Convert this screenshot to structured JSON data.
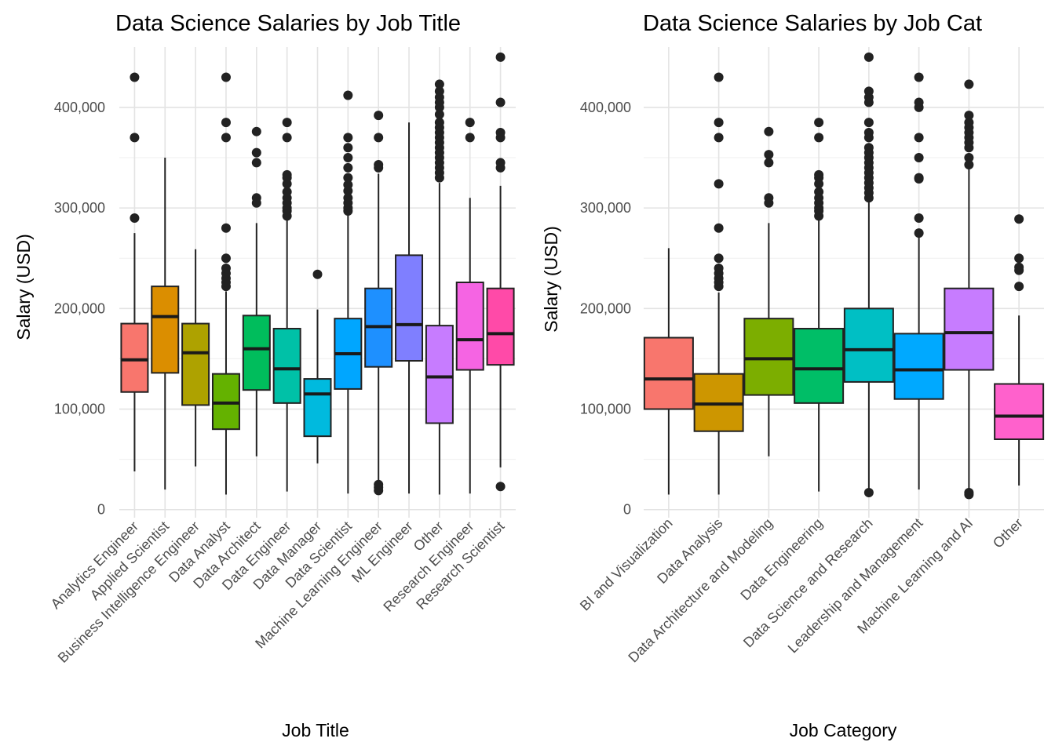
{
  "chart_data": [
    {
      "type": "box",
      "title": "Data Science Salaries by Job Title",
      "xlabel": "Job Title",
      "ylabel": "Salary (USD)",
      "ylim": [
        -8000,
        460000
      ],
      "yticks": [
        0,
        100000,
        200000,
        300000,
        400000
      ],
      "ytick_labels": [
        "0",
        "100,000",
        "200,000",
        "300,000",
        "400,000"
      ],
      "grid": true,
      "legend": "none",
      "boxes": [
        {
          "category": "Analytics Engineer",
          "color": "#F8766D",
          "whisker_low": 38000,
          "q1": 117000,
          "median": 149000,
          "q3": 185000,
          "whisker_high": 275000,
          "outliers": [
            290000,
            370000,
            430000
          ]
        },
        {
          "category": "Applied Scientist",
          "color": "#DB8E00",
          "whisker_low": 20000,
          "q1": 136000,
          "median": 192000,
          "q3": 222000,
          "whisker_high": 350000,
          "outliers": []
        },
        {
          "category": "Business Intelligence Engineer",
          "color": "#AEA200",
          "whisker_low": 43000,
          "q1": 104000,
          "median": 156000,
          "q3": 185000,
          "whisker_high": 259000,
          "outliers": []
        },
        {
          "category": "Data Analyst",
          "color": "#64B200",
          "whisker_low": 15000,
          "q1": 80000,
          "median": 106000,
          "q3": 135000,
          "whisker_high": 217000,
          "outliers": [
            222000,
            226000,
            230000,
            235000,
            240000,
            250000,
            280000,
            370000,
            385000,
            430000
          ]
        },
        {
          "category": "Data Architect",
          "color": "#00BD5C",
          "whisker_low": 53000,
          "q1": 119000,
          "median": 160000,
          "q3": 193000,
          "whisker_high": 285000,
          "outliers": [
            305000,
            310000,
            345000,
            355000,
            376000
          ]
        },
        {
          "category": "Data Engineer",
          "color": "#00C1A7",
          "whisker_low": 18000,
          "q1": 106000,
          "median": 140000,
          "q3": 180000,
          "whisker_high": 288000,
          "outliers": [
            292000,
            297000,
            300000,
            305000,
            310000,
            316000,
            324000,
            330000,
            333000,
            370000,
            385000
          ]
        },
        {
          "category": "Data Manager",
          "color": "#00BADE",
          "whisker_low": 46000,
          "q1": 73000,
          "median": 115000,
          "q3": 130000,
          "whisker_high": 199000,
          "outliers": [
            234000
          ]
        },
        {
          "category": "Data Scientist",
          "color": "#00A6FF",
          "whisker_low": 16000,
          "q1": 120000,
          "median": 155000,
          "q3": 190000,
          "whisker_high": 293000,
          "outliers": [
            297000,
            300000,
            305000,
            310000,
            317000,
            323000,
            330000,
            340000,
            350000,
            360000,
            370000,
            412000
          ]
        },
        {
          "category": "Machine Learning Engineer",
          "color": "#1E90FF",
          "whisker_low": 26000,
          "q1": 142000,
          "median": 182000,
          "q3": 220000,
          "whisker_high": 334000,
          "outliers": [
            19000,
            22000,
            25000,
            340000,
            343000,
            370000,
            392000
          ]
        },
        {
          "category": "ML Engineer",
          "color": "#7F7FFF",
          "whisker_low": 16000,
          "q1": 148000,
          "median": 184000,
          "q3": 253000,
          "whisker_high": 385000,
          "outliers": []
        },
        {
          "category": "Other",
          "color": "#C77CFF",
          "whisker_low": 15000,
          "q1": 86000,
          "median": 132000,
          "q3": 183000,
          "whisker_high": 325000,
          "outliers": [
            330000,
            335000,
            340000,
            345000,
            350000,
            355000,
            360000,
            365000,
            370000,
            375000,
            380000,
            385000,
            393000,
            400000,
            405000,
            410000,
            416000,
            423000
          ]
        },
        {
          "category": "Research Engineer",
          "color": "#F564E3",
          "whisker_low": 16000,
          "q1": 139000,
          "median": 169000,
          "q3": 226000,
          "whisker_high": 310000,
          "outliers": [
            370000,
            385000
          ]
        },
        {
          "category": "Research Scientist",
          "color": "#FF4AA8",
          "whisker_low": 42000,
          "q1": 144000,
          "median": 175000,
          "q3": 220000,
          "whisker_high": 322000,
          "outliers": [
            23000,
            340000,
            345000,
            370000,
            375000,
            405000,
            450000
          ]
        }
      ]
    },
    {
      "type": "box",
      "title": "Data Science Salaries by Job Cat",
      "xlabel": "Job Category",
      "ylabel": "Salary (USD)",
      "ylim": [
        -8000,
        460000
      ],
      "yticks": [
        0,
        100000,
        200000,
        300000,
        400000
      ],
      "ytick_labels": [
        "0",
        "100,000",
        "200,000",
        "300,000",
        "400,000"
      ],
      "grid": true,
      "legend": "none",
      "boxes": [
        {
          "category": "BI and Visualization",
          "color": "#F8766D",
          "whisker_low": 15000,
          "q1": 100000,
          "median": 130000,
          "q3": 171000,
          "whisker_high": 260000,
          "outliers": []
        },
        {
          "category": "Data Analysis",
          "color": "#CD9600",
          "whisker_low": 15000,
          "q1": 78000,
          "median": 105000,
          "q3": 135000,
          "whisker_high": 216000,
          "outliers": [
            222000,
            226000,
            230000,
            235000,
            240000,
            250000,
            280000,
            324000,
            370000,
            385000,
            430000
          ]
        },
        {
          "category": "Data Architecture and Modeling",
          "color": "#7CAE00",
          "whisker_low": 53000,
          "q1": 114000,
          "median": 150000,
          "q3": 190000,
          "whisker_high": 285000,
          "outliers": [
            305000,
            310000,
            345000,
            353000,
            376000
          ]
        },
        {
          "category": "Data Engineering",
          "color": "#00BE67",
          "whisker_low": 18000,
          "q1": 106000,
          "median": 140000,
          "q3": 180000,
          "whisker_high": 288000,
          "outliers": [
            292000,
            297000,
            300000,
            305000,
            310000,
            316000,
            324000,
            330000,
            333000,
            370000,
            385000
          ]
        },
        {
          "category": "Data Science and Research",
          "color": "#00BFC4",
          "whisker_low": 16000,
          "q1": 127000,
          "median": 159000,
          "q3": 200000,
          "whisker_high": 307000,
          "outliers": [
            17000,
            310000,
            315000,
            320000,
            325000,
            330000,
            335000,
            340000,
            345000,
            350000,
            355000,
            360000,
            370000,
            375000,
            385000,
            405000,
            410000,
            416000,
            450000
          ]
        },
        {
          "category": "Leadership and Management",
          "color": "#00A9FF",
          "whisker_low": 20000,
          "q1": 110000,
          "median": 139000,
          "q3": 175000,
          "whisker_high": 275000,
          "outliers": [
            275000,
            290000,
            329000,
            330000,
            350000,
            370000,
            400000,
            405000,
            430000
          ]
        },
        {
          "category": "Machine Learning and AI",
          "color": "#C77CFF",
          "whisker_low": 16000,
          "q1": 139000,
          "median": 176000,
          "q3": 220000,
          "whisker_high": 342000,
          "outliers": [
            15000,
            17000,
            343000,
            350000,
            360000,
            365000,
            370000,
            375000,
            380000,
            385000,
            392000,
            423000
          ]
        },
        {
          "category": "Other",
          "color": "#FF61CC",
          "whisker_low": 24000,
          "q1": 70000,
          "median": 93000,
          "q3": 125000,
          "whisker_high": 193000,
          "outliers": [
            222000,
            238000,
            241000,
            250000,
            289000
          ]
        }
      ]
    }
  ]
}
